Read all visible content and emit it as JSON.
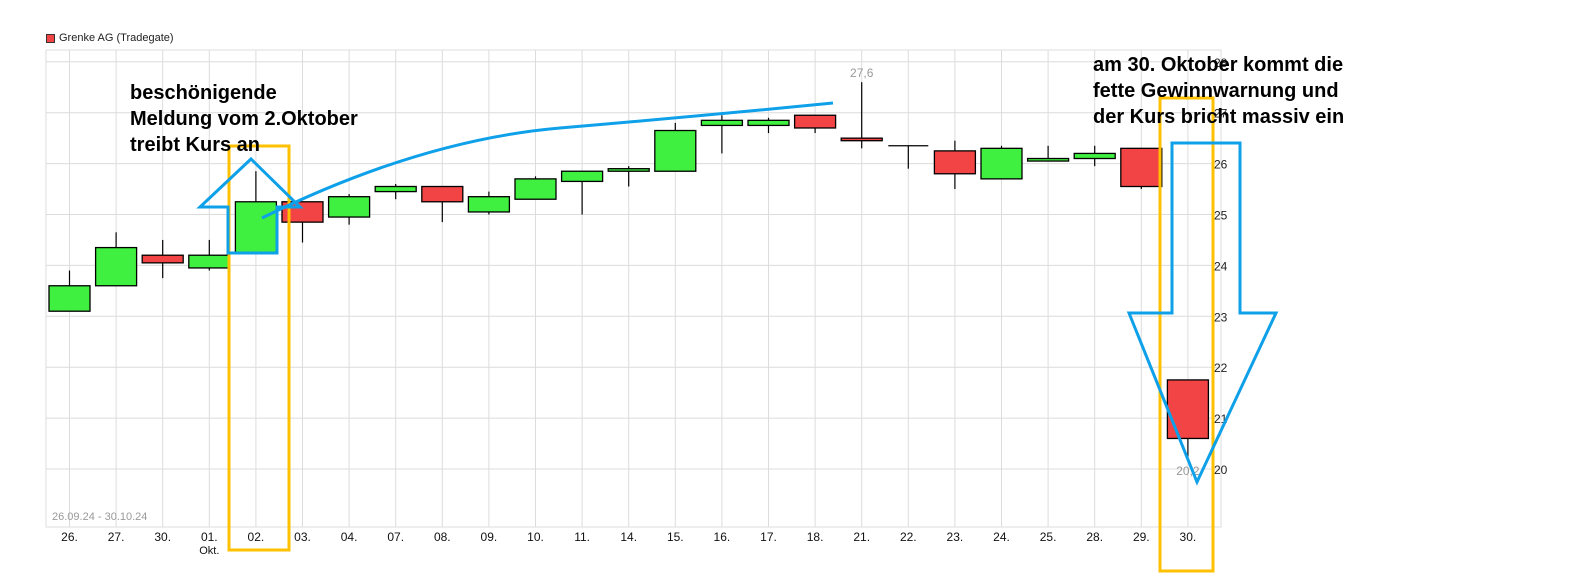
{
  "legend": {
    "label": "Grenke AG (Tradegate)",
    "color": "#f24444"
  },
  "date_range": "26.09.24 - 30.10.24",
  "annotations": {
    "left": [
      "beschönigende",
      "Meldung vom 2.Oktober",
      "treibt Kurs an"
    ],
    "right": [
      "am 30. Oktober kommt die",
      "fette Gewinnwarnung und",
      "der Kurs bricht massiv ein"
    ]
  },
  "colors": {
    "up": "#40f040",
    "down": "#f24444",
    "grid": "#dcdcdc",
    "highlight": "#ffc000",
    "arrow": "#0ea0e8",
    "label_grey": "#999999"
  },
  "chart_data": {
    "type": "candlestick",
    "title": "Grenke AG (Tradegate)",
    "xlabel": "",
    "ylabel": "",
    "ylim": [
      19.2,
      28.2
    ],
    "yticks": [
      20,
      21,
      22,
      23,
      24,
      25,
      26,
      27,
      28
    ],
    "grid": true,
    "legend_position": "top-left",
    "categories": [
      "26.",
      "27.",
      "30.",
      "01.",
      "02.",
      "03.",
      "04.",
      "07.",
      "08.",
      "09.",
      "10.",
      "11.",
      "14.",
      "15.",
      "16.",
      "17.",
      "18.",
      "21.",
      "22.",
      "23.",
      "24.",
      "25.",
      "28.",
      "29.",
      "30."
    ],
    "category_sublabels": {
      "3": "Okt."
    },
    "series": [
      {
        "name": "Grenke AG (Tradegate)",
        "ohlc": [
          [
            23.1,
            23.9,
            23.1,
            23.6
          ],
          [
            23.6,
            24.65,
            23.6,
            24.35
          ],
          [
            24.2,
            24.5,
            23.75,
            24.05
          ],
          [
            23.95,
            24.5,
            23.9,
            24.2
          ],
          [
            24.25,
            25.85,
            24.25,
            25.25
          ],
          [
            25.25,
            25.25,
            24.45,
            24.85
          ],
          [
            24.95,
            25.4,
            24.8,
            25.35
          ],
          [
            25.45,
            25.6,
            25.3,
            25.55
          ],
          [
            25.55,
            25.55,
            24.85,
            25.25
          ],
          [
            25.05,
            25.45,
            25.0,
            25.35
          ],
          [
            25.3,
            25.75,
            25.3,
            25.7
          ],
          [
            25.65,
            25.85,
            25.0,
            25.85
          ],
          [
            25.85,
            25.95,
            25.55,
            25.9
          ],
          [
            25.85,
            26.8,
            25.85,
            26.65
          ],
          [
            26.75,
            26.95,
            26.2,
            26.85
          ],
          [
            26.75,
            26.9,
            26.6,
            26.85
          ],
          [
            26.95,
            26.95,
            26.6,
            26.7
          ],
          [
            26.5,
            27.6,
            26.3,
            26.45
          ],
          [
            26.35,
            26.35,
            25.9,
            26.35
          ],
          [
            26.25,
            26.45,
            25.5,
            25.8
          ],
          [
            25.7,
            26.35,
            25.7,
            26.3
          ],
          [
            26.05,
            26.35,
            26.05,
            26.1
          ],
          [
            26.1,
            26.35,
            25.95,
            26.2
          ],
          [
            26.3,
            26.3,
            25.5,
            25.55
          ],
          [
            21.75,
            21.75,
            20.2,
            20.6
          ]
        ]
      }
    ],
    "annotations": [
      {
        "text": "27,6",
        "x": "21.",
        "y": 27.6
      },
      {
        "text": "20,2",
        "x": "30.",
        "y": 20.2
      }
    ]
  }
}
